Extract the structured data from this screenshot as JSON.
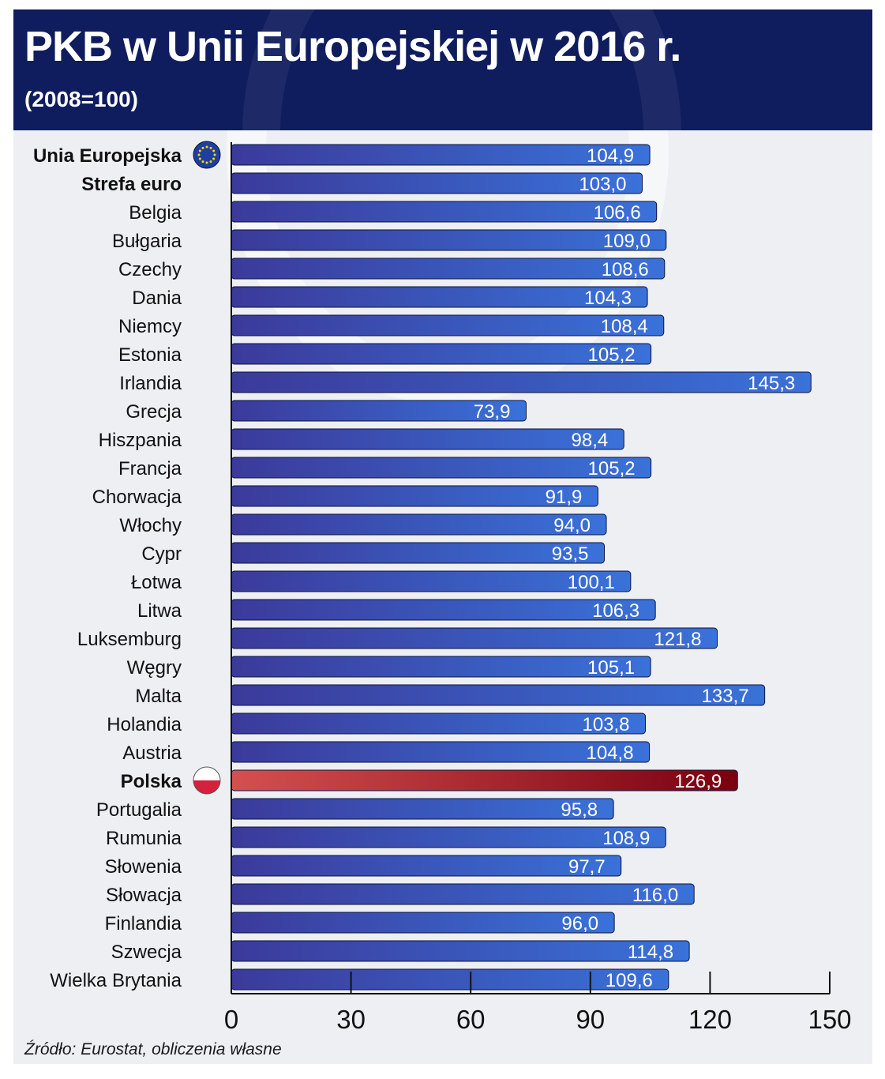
{
  "header": {
    "title": "PKB w Unii Europejskiej w 2016 r.",
    "subtitle": "(2008=100)"
  },
  "source": "Źródło: Eurostat, obliczenia własne",
  "colors": {
    "header_bg": "#0f1d5e",
    "bar_start": "#3b3a9a",
    "bar_end": "#3a72d9",
    "highlight_start": "#d45050",
    "highlight_end": "#7a0010",
    "eu_flag": "#1f3fa0",
    "eu_star": "#ffd500"
  },
  "chart_data": {
    "type": "bar",
    "orientation": "horizontal",
    "title": "PKB w Unii Europejskiej w 2016 r.",
    "subtitle": "(2008=100)",
    "xlim": [
      0,
      150
    ],
    "xticks": [
      0,
      30,
      60,
      90,
      120,
      150
    ],
    "categories": [
      "Unia Europejska",
      "Strefa euro",
      "Belgia",
      "Bułgaria",
      "Czechy",
      "Dania",
      "Niemcy",
      "Estonia",
      "Irlandia",
      "Grecja",
      "Hiszpania",
      "Francja",
      "Chorwacja",
      "Włochy",
      "Cypr",
      "Łotwa",
      "Litwa",
      "Luksemburg",
      "Węgry",
      "Malta",
      "Holandia",
      "Austria",
      "Polska",
      "Portugalia",
      "Rumunia",
      "Słowenia",
      "Słowacja",
      "Finlandia",
      "Szwecja",
      "Wielka Brytania"
    ],
    "values": [
      104.9,
      103.0,
      106.6,
      109.0,
      108.6,
      104.3,
      108.4,
      105.2,
      145.3,
      73.9,
      98.4,
      105.2,
      91.9,
      94.0,
      93.5,
      100.1,
      106.3,
      121.8,
      105.1,
      133.7,
      103.8,
      104.8,
      126.9,
      95.8,
      108.9,
      97.7,
      116.0,
      96.0,
      114.8,
      109.6
    ],
    "value_labels": [
      "104,9",
      "103,0",
      "106,6",
      "109,0",
      "108,6",
      "104,3",
      "108,4",
      "105,2",
      "145,3",
      "73,9",
      "98,4",
      "105,2",
      "91,9",
      "94,0",
      "93,5",
      "100,1",
      "106,3",
      "121,8",
      "105,1",
      "133,7",
      "103,8",
      "104,8",
      "126,9",
      "95,8",
      "108,9",
      "97,7",
      "116,0",
      "96,0",
      "114,8",
      "109,6"
    ],
    "bold_categories": [
      "Unia Europejska",
      "Strefa euro",
      "Polska"
    ],
    "highlight": "Polska",
    "flag_icons": {
      "Unia Europejska": "eu-flag-icon",
      "Polska": "poland-flag-icon"
    },
    "grid": false
  }
}
